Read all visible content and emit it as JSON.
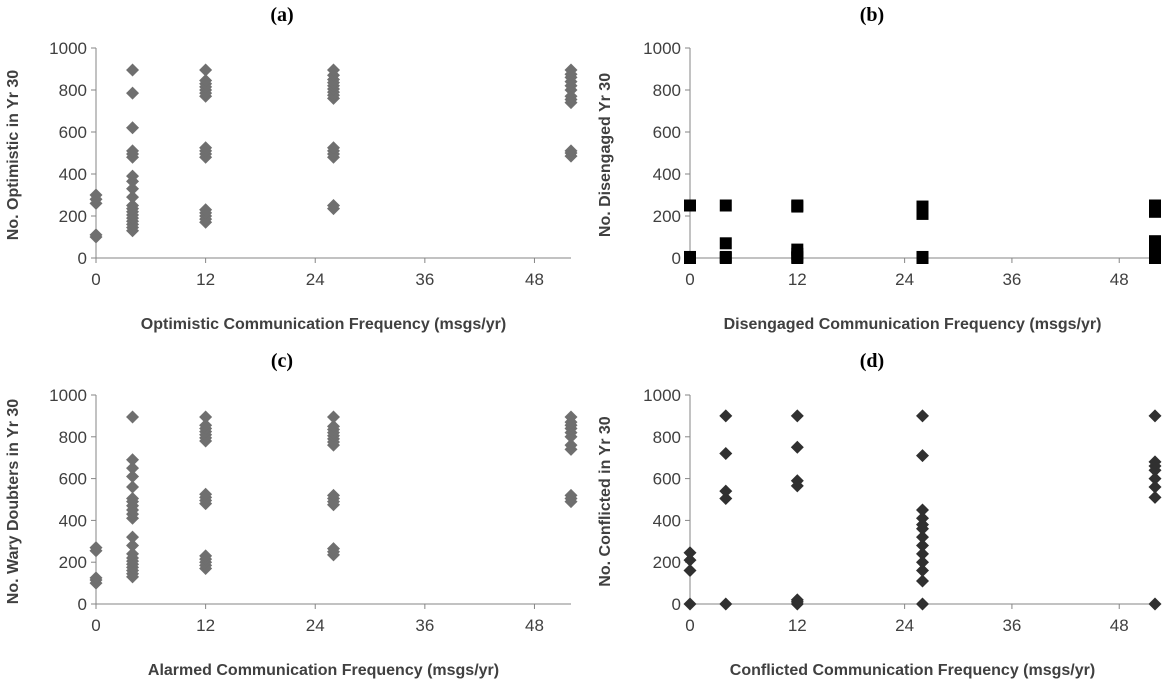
{
  "chart_data": [
    {
      "type": "scatter",
      "title": "(a)",
      "xlabel": "Optimistic Communication Frequency (msgs/yr)",
      "ylabel": "No. Optimistic in Yr 30",
      "xlim": [
        0,
        52
      ],
      "ylim": [
        0,
        1000
      ],
      "xticks": [
        "0",
        "12",
        "24",
        "36",
        "48"
      ],
      "yticks": [
        "0",
        "200",
        "400",
        "600",
        "800",
        "1000"
      ],
      "marker": "diamond",
      "color": "#6f6f6f",
      "grid": false,
      "points": [
        [
          0,
          100
        ],
        [
          0,
          110
        ],
        [
          0,
          260
        ],
        [
          0,
          280
        ],
        [
          0,
          300
        ],
        [
          4,
          130
        ],
        [
          4,
          145
        ],
        [
          4,
          160
        ],
        [
          4,
          175
        ],
        [
          4,
          190
        ],
        [
          4,
          205
        ],
        [
          4,
          220
        ],
        [
          4,
          235
        ],
        [
          4,
          250
        ],
        [
          4,
          290
        ],
        [
          4,
          330
        ],
        [
          4,
          365
        ],
        [
          4,
          390
        ],
        [
          4,
          480
        ],
        [
          4,
          495
        ],
        [
          4,
          510
        ],
        [
          4,
          620
        ],
        [
          4,
          785
        ],
        [
          4,
          895
        ],
        [
          12,
          170
        ],
        [
          12,
          185
        ],
        [
          12,
          200
        ],
        [
          12,
          215
        ],
        [
          12,
          230
        ],
        [
          12,
          480
        ],
        [
          12,
          495
        ],
        [
          12,
          510
        ],
        [
          12,
          525
        ],
        [
          12,
          770
        ],
        [
          12,
          785
        ],
        [
          12,
          800
        ],
        [
          12,
          815
        ],
        [
          12,
          830
        ],
        [
          12,
          845
        ],
        [
          12,
          895
        ],
        [
          26,
          235
        ],
        [
          26,
          250
        ],
        [
          26,
          480
        ],
        [
          26,
          495
        ],
        [
          26,
          510
        ],
        [
          26,
          525
        ],
        [
          26,
          760
        ],
        [
          26,
          775
        ],
        [
          26,
          790
        ],
        [
          26,
          805
        ],
        [
          26,
          820
        ],
        [
          26,
          835
        ],
        [
          26,
          850
        ],
        [
          26,
          870
        ],
        [
          26,
          895
        ],
        [
          52,
          485
        ],
        [
          52,
          500
        ],
        [
          52,
          510
        ],
        [
          52,
          740
        ],
        [
          52,
          755
        ],
        [
          52,
          770
        ],
        [
          52,
          800
        ],
        [
          52,
          820
        ],
        [
          52,
          840
        ],
        [
          52,
          860
        ],
        [
          52,
          875
        ],
        [
          52,
          895
        ]
      ]
    },
    {
      "type": "scatter",
      "title": "(b)",
      "xlabel": "Disengaged Communication Frequency (msgs/yr)",
      "ylabel": "No. Disengaged Yr 30",
      "xlim": [
        0,
        52
      ],
      "ylim": [
        0,
        1000
      ],
      "xticks": [
        "0",
        "12",
        "24",
        "36",
        "48"
      ],
      "yticks": [
        "0",
        "200",
        "400",
        "600",
        "800",
        "1000"
      ],
      "marker": "square",
      "color": "#000000",
      "grid": false,
      "points": [
        [
          0,
          0
        ],
        [
          0,
          5
        ],
        [
          0,
          250
        ],
        [
          4,
          0
        ],
        [
          4,
          5
        ],
        [
          4,
          70
        ],
        [
          4,
          250
        ],
        [
          12,
          0
        ],
        [
          12,
          5
        ],
        [
          12,
          20
        ],
        [
          12,
          40
        ],
        [
          12,
          245
        ],
        [
          12,
          250
        ],
        [
          26,
          0
        ],
        [
          26,
          5
        ],
        [
          26,
          210
        ],
        [
          26,
          230
        ],
        [
          26,
          245
        ],
        [
          52,
          0
        ],
        [
          52,
          10
        ],
        [
          52,
          40
        ],
        [
          52,
          80
        ],
        [
          52,
          220
        ],
        [
          52,
          240
        ],
        [
          52,
          250
        ]
      ]
    },
    {
      "type": "scatter",
      "title": "(c)",
      "xlabel": "Alarmed Communication Frequency (msgs/yr)",
      "ylabel": "No. Wary Doubters in Yr 30",
      "xlim": [
        0,
        52
      ],
      "ylim": [
        0,
        1000
      ],
      "xticks": [
        "0",
        "12",
        "24",
        "36",
        "48"
      ],
      "yticks": [
        "0",
        "200",
        "400",
        "600",
        "800",
        "1000"
      ],
      "marker": "diamond",
      "color": "#6f6f6f",
      "grid": false,
      "points": [
        [
          0,
          100
        ],
        [
          0,
          115
        ],
        [
          0,
          125
        ],
        [
          0,
          255
        ],
        [
          0,
          270
        ],
        [
          4,
          130
        ],
        [
          4,
          145
        ],
        [
          4,
          160
        ],
        [
          4,
          175
        ],
        [
          4,
          190
        ],
        [
          4,
          205
        ],
        [
          4,
          220
        ],
        [
          4,
          240
        ],
        [
          4,
          280
        ],
        [
          4,
          320
        ],
        [
          4,
          410
        ],
        [
          4,
          430
        ],
        [
          4,
          450
        ],
        [
          4,
          470
        ],
        [
          4,
          490
        ],
        [
          4,
          505
        ],
        [
          4,
          560
        ],
        [
          4,
          610
        ],
        [
          4,
          650
        ],
        [
          4,
          690
        ],
        [
          4,
          895
        ],
        [
          12,
          170
        ],
        [
          12,
          185
        ],
        [
          12,
          200
        ],
        [
          12,
          215
        ],
        [
          12,
          230
        ],
        [
          12,
          480
        ],
        [
          12,
          495
        ],
        [
          12,
          510
        ],
        [
          12,
          525
        ],
        [
          12,
          780
        ],
        [
          12,
          795
        ],
        [
          12,
          810
        ],
        [
          12,
          825
        ],
        [
          12,
          840
        ],
        [
          12,
          855
        ],
        [
          12,
          895
        ],
        [
          26,
          235
        ],
        [
          26,
          250
        ],
        [
          26,
          265
        ],
        [
          26,
          475
        ],
        [
          26,
          490
        ],
        [
          26,
          505
        ],
        [
          26,
          520
        ],
        [
          26,
          760
        ],
        [
          26,
          775
        ],
        [
          26,
          790
        ],
        [
          26,
          805
        ],
        [
          26,
          820
        ],
        [
          26,
          835
        ],
        [
          26,
          850
        ],
        [
          26,
          895
        ],
        [
          52,
          490
        ],
        [
          52,
          505
        ],
        [
          52,
          520
        ],
        [
          52,
          740
        ],
        [
          52,
          760
        ],
        [
          52,
          800
        ],
        [
          52,
          820
        ],
        [
          52,
          840
        ],
        [
          52,
          855
        ],
        [
          52,
          870
        ],
        [
          52,
          895
        ]
      ]
    },
    {
      "type": "scatter",
      "title": "(d)",
      "xlabel": "Conflicted Communication Frequency (msgs/yr)",
      "ylabel": "No. Conflicted in Yr 30",
      "xlim": [
        0,
        52
      ],
      "ylim": [
        0,
        1000
      ],
      "xticks": [
        "0",
        "12",
        "24",
        "36",
        "48"
      ],
      "yticks": [
        "0",
        "200",
        "400",
        "600",
        "800",
        "1000"
      ],
      "marker": "diamond",
      "color": "#303030",
      "grid": false,
      "points": [
        [
          0,
          0
        ],
        [
          0,
          160
        ],
        [
          0,
          210
        ],
        [
          0,
          245
        ],
        [
          4,
          0
        ],
        [
          4,
          505
        ],
        [
          4,
          540
        ],
        [
          4,
          720
        ],
        [
          4,
          900
        ],
        [
          12,
          0
        ],
        [
          12,
          10
        ],
        [
          12,
          20
        ],
        [
          12,
          565
        ],
        [
          12,
          590
        ],
        [
          12,
          750
        ],
        [
          12,
          900
        ],
        [
          26,
          0
        ],
        [
          26,
          110
        ],
        [
          26,
          160
        ],
        [
          26,
          200
        ],
        [
          26,
          240
        ],
        [
          26,
          280
        ],
        [
          26,
          320
        ],
        [
          26,
          360
        ],
        [
          26,
          380
        ],
        [
          26,
          410
        ],
        [
          26,
          450
        ],
        [
          26,
          710
        ],
        [
          26,
          900
        ],
        [
          52,
          0
        ],
        [
          52,
          510
        ],
        [
          52,
          560
        ],
        [
          52,
          600
        ],
        [
          52,
          640
        ],
        [
          52,
          660
        ],
        [
          52,
          680
        ],
        [
          52,
          900
        ]
      ]
    }
  ]
}
